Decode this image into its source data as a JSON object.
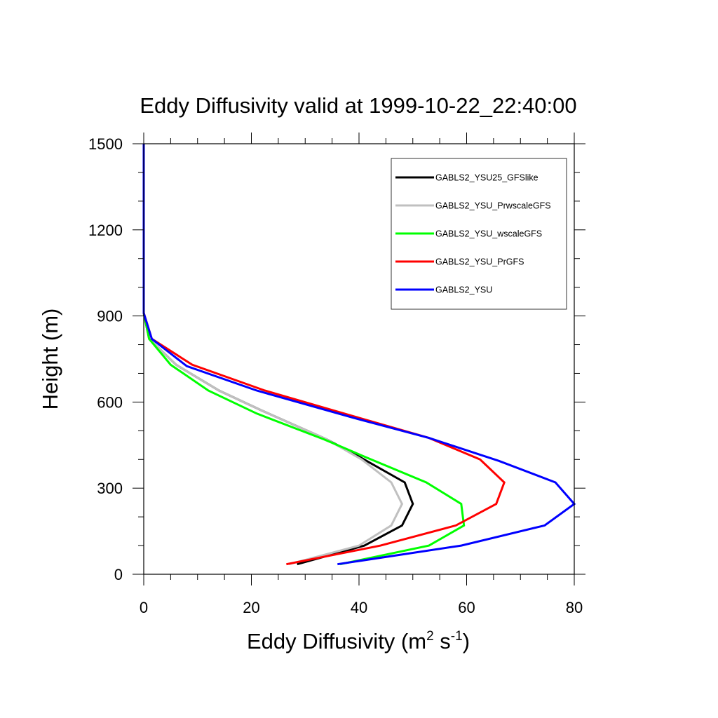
{
  "chart_data": {
    "type": "line",
    "title": "Eddy Diffusivity valid at 1999-10-22_22:40:00",
    "xlabel": {
      "base": "Eddy Diffusivity (m",
      "sup1": "2",
      "mid": " s",
      "sup2": "-1",
      "end": ")"
    },
    "ylabel": "Height (m)",
    "xlim": [
      0,
      80
    ],
    "ylim": [
      0,
      1500
    ],
    "x_ticks": [
      "0",
      "20",
      "40",
      "60",
      "80"
    ],
    "y_ticks": [
      "0",
      "300",
      "600",
      "900",
      "1200",
      "1500"
    ],
    "legend_position": "top-right",
    "series": [
      {
        "name": "GABLS2_YSU25_GFSlike",
        "color": "#000000",
        "x": [
          28.5,
          41,
          48,
          50,
          48.5,
          40,
          34,
          22,
          14,
          6,
          1,
          0,
          0,
          0,
          0
        ],
        "y": [
          35,
          100,
          170,
          245,
          320,
          410,
          470,
          570,
          640,
          730,
          820,
          910,
          1100,
          1300,
          1500
        ]
      },
      {
        "name": "GABLS2_YSU_PrwscaleGFS",
        "color": "#c0c0c0",
        "x": [
          27,
          40,
          46,
          48,
          46,
          40.5,
          34,
          22,
          14,
          6,
          1,
          0,
          0,
          0,
          0
        ],
        "y": [
          35,
          100,
          170,
          245,
          320,
          400,
          470,
          570,
          640,
          730,
          820,
          910,
          1100,
          1300,
          1500
        ]
      },
      {
        "name": "GABLS2_YSU_wscaleGFS",
        "color": "#00ff00",
        "x": [
          36.5,
          53,
          59.5,
          59,
          52.5,
          41,
          33.5,
          21,
          12,
          5,
          1,
          0,
          0,
          0,
          0
        ],
        "y": [
          35,
          100,
          170,
          245,
          320,
          410,
          470,
          560,
          640,
          730,
          820,
          910,
          1100,
          1300,
          1500
        ]
      },
      {
        "name": "GABLS2_YSU_PrGFS",
        "color": "#ff0000",
        "x": [
          26.5,
          44,
          58,
          65.5,
          67,
          62.5,
          53,
          40,
          22.5,
          9,
          1.5,
          0,
          0,
          0,
          0
        ],
        "y": [
          35,
          100,
          170,
          245,
          320,
          400,
          475,
          545,
          640,
          730,
          820,
          910,
          1100,
          1300,
          1500
        ]
      },
      {
        "name": "GABLS2_YSU",
        "color": "#0000ff",
        "x": [
          36,
          59,
          74.5,
          80,
          76.5,
          66,
          53,
          39,
          21,
          8,
          1.5,
          0,
          0,
          0,
          0
        ],
        "y": [
          35,
          100,
          170,
          245,
          320,
          395,
          475,
          545,
          640,
          725,
          820,
          910,
          1100,
          1300,
          1500
        ]
      }
    ]
  }
}
